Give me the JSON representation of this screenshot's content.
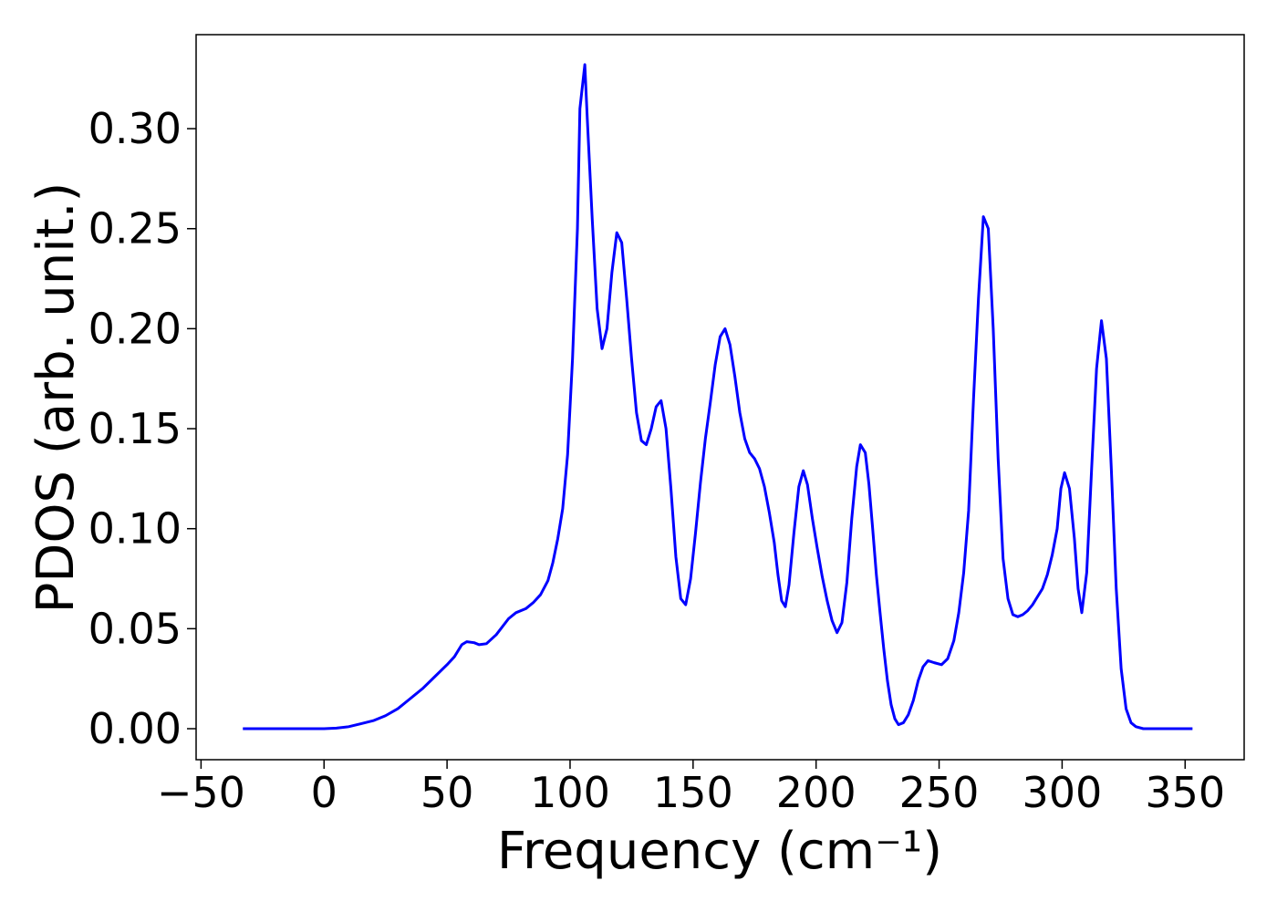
{
  "chart_data": {
    "type": "line",
    "xlabel": "Frequency (cm⁻¹)",
    "ylabel": "PDOS (arb. unit.)",
    "color": "#0000ff",
    "grid": false,
    "xlim": [
      -52,
      374
    ],
    "ylim": [
      -0.0155,
      0.347
    ],
    "xticks": [
      {
        "value": -50,
        "label": "−50"
      },
      0,
      50,
      100,
      150,
      200,
      250,
      300,
      350
    ],
    "yticks": [
      {
        "value": 0,
        "label": "0.00"
      },
      {
        "value": 0.05,
        "label": "0.05"
      },
      {
        "value": 0.1,
        "label": "0.10"
      },
      {
        "value": 0.15,
        "label": "0.15"
      },
      {
        "value": 0.2,
        "label": "0.20"
      },
      {
        "value": 0.25,
        "label": "0.25"
      },
      {
        "value": 0.3,
        "label": "0.30"
      }
    ],
    "x": [
      -33,
      0,
      5,
      10,
      15,
      20,
      25,
      30,
      35,
      40,
      45,
      50,
      53,
      56,
      58,
      61,
      63,
      66,
      70,
      75,
      78,
      82,
      85,
      88,
      91,
      93,
      95,
      97,
      99,
      101,
      103,
      104,
      106,
      107,
      109,
      111,
      113,
      115,
      117,
      119,
      121,
      123,
      125,
      127,
      129,
      131,
      133,
      135,
      137,
      139,
      141,
      143,
      145,
      147,
      149,
      151,
      153,
      155,
      157,
      159,
      161,
      163,
      165,
      167,
      169,
      171,
      173,
      175,
      177,
      179,
      181,
      183,
      184.5,
      186,
      187.5,
      189,
      191,
      193,
      194.8,
      196.5,
      198.5,
      200.5,
      202.5,
      204.5,
      206.5,
      208.5,
      210.5,
      212.5,
      214.5,
      216.5,
      218,
      220,
      221.5,
      223,
      224.5,
      226,
      227.5,
      229,
      230.5,
      232,
      233.5,
      235.5,
      237.5,
      239.5,
      241.5,
      243.5,
      245.5,
      248,
      251,
      253.5,
      256,
      258,
      260,
      262,
      264,
      266,
      268,
      270,
      272,
      274,
      276,
      278,
      280,
      282,
      284,
      286,
      288,
      290,
      292,
      294,
      296,
      298,
      299.5,
      301,
      303,
      305,
      306.5,
      308,
      310,
      312,
      314,
      316,
      318,
      320,
      322,
      324,
      326,
      328,
      330,
      333,
      340,
      353
    ],
    "values": [
      0,
      0,
      0.0003,
      0.001,
      0.0025,
      0.004,
      0.0065,
      0.01,
      0.015,
      0.02,
      0.026,
      0.032,
      0.036,
      0.042,
      0.0435,
      0.043,
      0.042,
      0.0425,
      0.047,
      0.055,
      0.058,
      0.06,
      0.063,
      0.067,
      0.074,
      0.083,
      0.095,
      0.11,
      0.137,
      0.185,
      0.25,
      0.31,
      0.332,
      0.305,
      0.255,
      0.21,
      0.19,
      0.2,
      0.228,
      0.248,
      0.243,
      0.215,
      0.185,
      0.158,
      0.144,
      0.142,
      0.15,
      0.161,
      0.164,
      0.15,
      0.12,
      0.086,
      0.065,
      0.062,
      0.075,
      0.098,
      0.123,
      0.145,
      0.163,
      0.182,
      0.196,
      0.2,
      0.192,
      0.176,
      0.158,
      0.145,
      0.138,
      0.135,
      0.13,
      0.121,
      0.108,
      0.093,
      0.077,
      0.064,
      0.061,
      0.072,
      0.098,
      0.121,
      0.129,
      0.122,
      0.105,
      0.09,
      0.076,
      0.064,
      0.054,
      0.048,
      0.053,
      0.073,
      0.105,
      0.131,
      0.142,
      0.138,
      0.122,
      0.1,
      0.077,
      0.058,
      0.04,
      0.024,
      0.012,
      0.005,
      0.002,
      0.003,
      0.007,
      0.014,
      0.024,
      0.031,
      0.034,
      0.033,
      0.032,
      0.035,
      0.044,
      0.058,
      0.078,
      0.109,
      0.165,
      0.215,
      0.256,
      0.25,
      0.2,
      0.135,
      0.085,
      0.065,
      0.057,
      0.056,
      0.057,
      0.059,
      0.062,
      0.066,
      0.07,
      0.077,
      0.087,
      0.1,
      0.12,
      0.128,
      0.12,
      0.095,
      0.07,
      0.058,
      0.078,
      0.13,
      0.18,
      0.204,
      0.185,
      0.13,
      0.07,
      0.03,
      0.01,
      0.003,
      0.001,
      0,
      0,
      0
    ]
  }
}
